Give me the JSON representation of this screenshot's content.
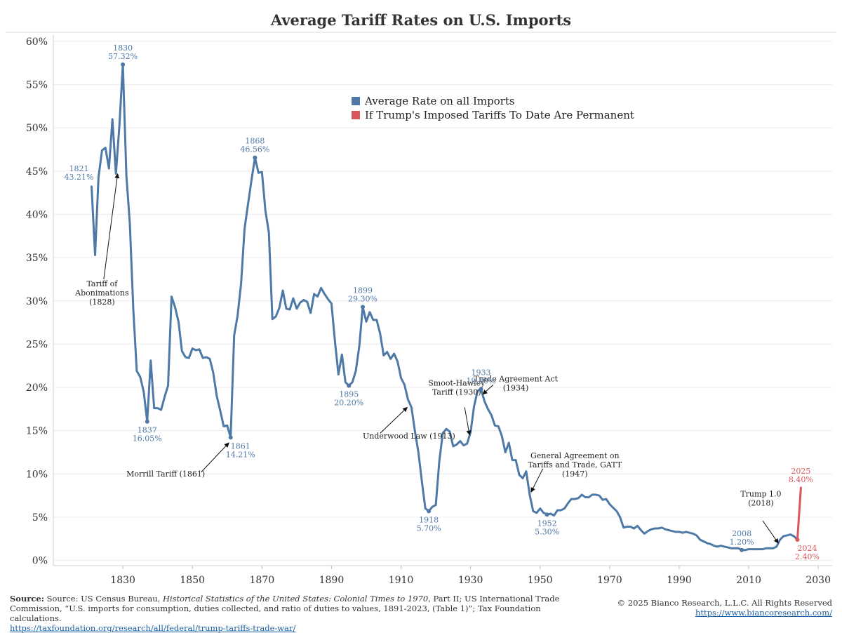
{
  "chart_data": {
    "type": "line",
    "title": "Average Tariff Rates on U.S. Imports",
    "xlabel": "",
    "ylabel": "",
    "xlim": [
      1810,
      2034
    ],
    "ylim": [
      -0.6,
      60.4
    ],
    "grid": true,
    "x_ticks": [
      1830,
      1850,
      1870,
      1890,
      1910,
      1930,
      1950,
      1970,
      1990,
      2010,
      2030
    ],
    "y_ticks": [
      {
        "value": 0,
        "label": "0%"
      },
      {
        "value": 5,
        "label": "5%"
      },
      {
        "value": 10,
        "label": "10%"
      },
      {
        "value": 15,
        "label": "15%"
      },
      {
        "value": 20,
        "label": "20%"
      },
      {
        "value": 25,
        "label": "25%"
      },
      {
        "value": 30,
        "label": "30%"
      },
      {
        "value": 35,
        "label": "35%"
      },
      {
        "value": 40,
        "label": "40%"
      },
      {
        "value": 45,
        "label": "45%"
      },
      {
        "value": 50,
        "label": "50%"
      },
      {
        "value": 55,
        "label": "55%"
      },
      {
        "value": 60,
        "label": "60%"
      }
    ],
    "legend": {
      "placement": "top-center",
      "entries": [
        {
          "label": "Average Rate on all Imports",
          "color": "#4e79a7"
        },
        {
          "label": "If Trump's Imposed Tariffs To Date Are Permanent",
          "color": "#d9575b"
        }
      ]
    },
    "series": [
      {
        "name": "Average Rate on all Imports",
        "color": "#4e79a7",
        "points": [
          [
            1821,
            43.21
          ],
          [
            1822,
            35.3
          ],
          [
            1823,
            44.3
          ],
          [
            1824,
            47.4
          ],
          [
            1825,
            47.7
          ],
          [
            1826,
            45.3
          ],
          [
            1827,
            51.0
          ],
          [
            1828,
            44.7
          ],
          [
            1829,
            50.3
          ],
          [
            1830,
            57.32
          ],
          [
            1831,
            44.5
          ],
          [
            1832,
            39.0
          ],
          [
            1833,
            29.0
          ],
          [
            1834,
            21.9
          ],
          [
            1835,
            21.2
          ],
          [
            1836,
            19.5
          ],
          [
            1837,
            16.05
          ],
          [
            1838,
            23.1
          ],
          [
            1839,
            17.6
          ],
          [
            1840,
            17.6
          ],
          [
            1841,
            17.4
          ],
          [
            1842,
            18.9
          ],
          [
            1843,
            20.2
          ],
          [
            1844,
            30.5
          ],
          [
            1845,
            29.3
          ],
          [
            1846,
            27.6
          ],
          [
            1847,
            24.2
          ],
          [
            1848,
            23.5
          ],
          [
            1849,
            23.4
          ],
          [
            1850,
            24.5
          ],
          [
            1851,
            24.3
          ],
          [
            1852,
            24.4
          ],
          [
            1853,
            23.4
          ],
          [
            1854,
            23.5
          ],
          [
            1855,
            23.3
          ],
          [
            1856,
            21.7
          ],
          [
            1857,
            19.0
          ],
          [
            1858,
            17.3
          ],
          [
            1859,
            15.5
          ],
          [
            1860,
            15.6
          ],
          [
            1861,
            14.21
          ],
          [
            1862,
            26.0
          ],
          [
            1863,
            28.3
          ],
          [
            1864,
            32.0
          ],
          [
            1865,
            38.3
          ],
          [
            1866,
            41.2
          ],
          [
            1867,
            44.0
          ],
          [
            1868,
            46.56
          ],
          [
            1869,
            44.8
          ],
          [
            1870,
            44.9
          ],
          [
            1871,
            40.4
          ],
          [
            1872,
            37.9
          ],
          [
            1873,
            27.9
          ],
          [
            1874,
            28.2
          ],
          [
            1875,
            29.2
          ],
          [
            1876,
            31.2
          ],
          [
            1877,
            29.1
          ],
          [
            1878,
            29.0
          ],
          [
            1879,
            30.3
          ],
          [
            1880,
            29.1
          ],
          [
            1881,
            29.8
          ],
          [
            1882,
            30.1
          ],
          [
            1883,
            29.9
          ],
          [
            1884,
            28.6
          ],
          [
            1885,
            30.8
          ],
          [
            1886,
            30.5
          ],
          [
            1887,
            31.5
          ],
          [
            1888,
            30.8
          ],
          [
            1889,
            30.2
          ],
          [
            1890,
            29.7
          ],
          [
            1891,
            25.3
          ],
          [
            1892,
            21.5
          ],
          [
            1893,
            23.8
          ],
          [
            1894,
            20.6
          ],
          [
            1895,
            20.2
          ],
          [
            1896,
            20.6
          ],
          [
            1897,
            21.9
          ],
          [
            1898,
            24.8
          ],
          [
            1899,
            29.3
          ],
          [
            1900,
            27.6
          ],
          [
            1901,
            28.7
          ],
          [
            1902,
            27.8
          ],
          [
            1903,
            27.8
          ],
          [
            1904,
            26.2
          ],
          [
            1905,
            23.7
          ],
          [
            1906,
            24.1
          ],
          [
            1907,
            23.3
          ],
          [
            1908,
            23.9
          ],
          [
            1909,
            23.0
          ],
          [
            1910,
            21.1
          ],
          [
            1911,
            20.3
          ],
          [
            1912,
            18.6
          ],
          [
            1913,
            17.7
          ],
          [
            1914,
            14.9
          ],
          [
            1915,
            12.5
          ],
          [
            1916,
            9.1
          ],
          [
            1917,
            6.0
          ],
          [
            1918,
            5.7
          ],
          [
            1919,
            6.2
          ],
          [
            1920,
            6.4
          ],
          [
            1921,
            11.4
          ],
          [
            1922,
            14.7
          ],
          [
            1923,
            15.2
          ],
          [
            1924,
            14.9
          ],
          [
            1925,
            13.2
          ],
          [
            1926,
            13.4
          ],
          [
            1927,
            13.8
          ],
          [
            1928,
            13.3
          ],
          [
            1929,
            13.5
          ],
          [
            1930,
            14.8
          ],
          [
            1931,
            17.8
          ],
          [
            1932,
            19.6
          ],
          [
            1933,
            19.8
          ],
          [
            1934,
            18.4
          ],
          [
            1935,
            17.5
          ],
          [
            1936,
            16.8
          ],
          [
            1937,
            15.6
          ],
          [
            1938,
            15.5
          ],
          [
            1939,
            14.4
          ],
          [
            1940,
            12.5
          ],
          [
            1941,
            13.6
          ],
          [
            1942,
            11.6
          ],
          [
            1943,
            11.6
          ],
          [
            1944,
            9.9
          ],
          [
            1945,
            9.5
          ],
          [
            1946,
            10.3
          ],
          [
            1947,
            7.6
          ],
          [
            1948,
            5.7
          ],
          [
            1949,
            5.5
          ],
          [
            1950,
            6.0
          ],
          [
            1951,
            5.5
          ],
          [
            1952,
            5.3
          ],
          [
            1953,
            5.4
          ],
          [
            1954,
            5.2
          ],
          [
            1955,
            5.8
          ],
          [
            1956,
            5.8
          ],
          [
            1957,
            6.0
          ],
          [
            1958,
            6.6
          ],
          [
            1959,
            7.1
          ],
          [
            1960,
            7.1
          ],
          [
            1961,
            7.2
          ],
          [
            1962,
            7.6
          ],
          [
            1963,
            7.3
          ],
          [
            1964,
            7.3
          ],
          [
            1965,
            7.6
          ],
          [
            1966,
            7.6
          ],
          [
            1967,
            7.5
          ],
          [
            1968,
            7.0
          ],
          [
            1969,
            7.1
          ],
          [
            1970,
            6.5
          ],
          [
            1971,
            6.1
          ],
          [
            1972,
            5.7
          ],
          [
            1973,
            5.0
          ],
          [
            1974,
            3.8
          ],
          [
            1975,
            3.9
          ],
          [
            1976,
            3.9
          ],
          [
            1977,
            3.7
          ],
          [
            1978,
            4.0
          ],
          [
            1979,
            3.5
          ],
          [
            1980,
            3.1
          ],
          [
            1981,
            3.4
          ],
          [
            1982,
            3.6
          ],
          [
            1983,
            3.7
          ],
          [
            1984,
            3.7
          ],
          [
            1985,
            3.8
          ],
          [
            1986,
            3.6
          ],
          [
            1987,
            3.5
          ],
          [
            1988,
            3.4
          ],
          [
            1989,
            3.3
          ],
          [
            1990,
            3.3
          ],
          [
            1991,
            3.2
          ],
          [
            1992,
            3.3
          ],
          [
            1993,
            3.2
          ],
          [
            1994,
            3.1
          ],
          [
            1995,
            2.9
          ],
          [
            1996,
            2.4
          ],
          [
            1997,
            2.2
          ],
          [
            1998,
            2.0
          ],
          [
            1999,
            1.9
          ],
          [
            2000,
            1.7
          ],
          [
            2001,
            1.6
          ],
          [
            2002,
            1.7
          ],
          [
            2003,
            1.6
          ],
          [
            2004,
            1.5
          ],
          [
            2005,
            1.4
          ],
          [
            2006,
            1.4
          ],
          [
            2007,
            1.4
          ],
          [
            2008,
            1.2
          ],
          [
            2009,
            1.2
          ],
          [
            2010,
            1.3
          ],
          [
            2011,
            1.3
          ],
          [
            2012,
            1.3
          ],
          [
            2013,
            1.3
          ],
          [
            2014,
            1.3
          ],
          [
            2015,
            1.4
          ],
          [
            2016,
            1.4
          ],
          [
            2017,
            1.4
          ],
          [
            2018,
            1.6
          ],
          [
            2019,
            2.4
          ],
          [
            2020,
            2.8
          ],
          [
            2021,
            2.9
          ],
          [
            2022,
            3.0
          ],
          [
            2023,
            2.8
          ],
          [
            2024,
            2.4
          ]
        ]
      },
      {
        "name": "If Trump's Imposed Tariffs To Date Are Permanent",
        "color": "#d9575b",
        "points": [
          [
            2024,
            2.4
          ],
          [
            2025,
            8.4
          ]
        ]
      }
    ],
    "point_labels": [
      {
        "x": 1821,
        "y": 43.21,
        "line1": "1821",
        "line2": "43.21%",
        "dot": false,
        "color": "blue",
        "pos": "above-left"
      },
      {
        "x": 1830,
        "y": 57.32,
        "line1": "1830",
        "line2": "57.32%",
        "dot": true,
        "color": "blue",
        "pos": "above"
      },
      {
        "x": 1837,
        "y": 16.05,
        "line1": "1837",
        "line2": "16.05%",
        "dot": true,
        "color": "blue",
        "pos": "below"
      },
      {
        "x": 1861,
        "y": 14.21,
        "line1": "1861",
        "line2": "14.21%",
        "dot": true,
        "color": "blue",
        "pos": "below-right"
      },
      {
        "x": 1868,
        "y": 46.56,
        "line1": "1868",
        "line2": "46.56%",
        "dot": true,
        "color": "blue",
        "pos": "above"
      },
      {
        "x": 1895,
        "y": 20.2,
        "line1": "1895",
        "line2": "20.20%",
        "dot": true,
        "color": "blue",
        "pos": "below"
      },
      {
        "x": 1899,
        "y": 29.3,
        "line1": "1899",
        "line2": "29.30%",
        "dot": true,
        "color": "blue",
        "pos": "above"
      },
      {
        "x": 1918,
        "y": 5.7,
        "line1": "1918",
        "line2": "5.70%",
        "dot": true,
        "color": "blue",
        "pos": "below"
      },
      {
        "x": 1933,
        "y": 19.8,
        "line1": "1933",
        "line2": "19.80%",
        "dot": true,
        "color": "blue",
        "pos": "above"
      },
      {
        "x": 1952,
        "y": 5.3,
        "line1": "1952",
        "line2": "5.30%",
        "dot": true,
        "color": "blue",
        "pos": "below"
      },
      {
        "x": 2008,
        "y": 1.2,
        "line1": "2008",
        "line2": "1.20%",
        "dot": true,
        "color": "blue",
        "pos": "above"
      },
      {
        "x": 2024,
        "y": 2.4,
        "line1": "2024",
        "line2": "2.40%",
        "dot": true,
        "color": "red",
        "pos": "below-right"
      },
      {
        "x": 2025,
        "y": 8.4,
        "line1": "2025",
        "line2": "8.40%",
        "dot": false,
        "color": "red",
        "pos": "above"
      }
    ],
    "annotations": [
      {
        "lines": [
          "Tariff of",
          "Abonimations",
          "(1828)"
        ],
        "text_x": 1824,
        "text_y": 31.7,
        "arrow_from": [
          1824.5,
          32.5
        ],
        "arrow_to": [
          1828.5,
          44.7
        ],
        "anchor": "middle"
      },
      {
        "lines": [
          "Morrill Tariff (1861)"
        ],
        "text_x": 1831,
        "text_y": 9.7,
        "arrow_from": [
          1852.5,
          10.2
        ],
        "arrow_to": [
          1860.5,
          13.6
        ],
        "anchor": "start"
      },
      {
        "lines": [
          "Underwood Law (1913)"
        ],
        "text_x": 1899,
        "text_y": 14.1,
        "arrow_from": [
          1904,
          14.7
        ],
        "arrow_to": [
          1911.8,
          17.7
        ],
        "anchor": "start"
      },
      {
        "lines": [
          "Smoot-Hawley",
          "Tariff (1930)"
        ],
        "text_x": 1926,
        "text_y": 20.2,
        "arrow_from": [
          1928.3,
          17.7
        ],
        "arrow_to": [
          1929.7,
          14.5
        ],
        "anchor": "middle"
      },
      {
        "lines": [
          "Trade Agreement Act",
          "(1934)"
        ],
        "text_x": 1943,
        "text_y": 20.7,
        "arrow_from": [
          1936.5,
          20.3
        ],
        "arrow_to": [
          1933.5,
          19.2
        ],
        "anchor": "middle"
      },
      {
        "lines": [
          "General Agreement on",
          "Tariffs and Trade, GATT",
          "(1947)"
        ],
        "text_x": 1960,
        "text_y": 11.8,
        "arrow_from": [
          1950.8,
          10.6
        ],
        "arrow_to": [
          1947.4,
          7.9
        ],
        "anchor": "middle"
      },
      {
        "lines": [
          "Trump 1.0",
          "(2018)"
        ],
        "text_x": 2013.5,
        "text_y": 7.4,
        "arrow_from": [
          2014,
          4.6
        ],
        "arrow_to": [
          2018.5,
          2.0
        ],
        "anchor": "middle"
      }
    ]
  },
  "footer": {
    "source_label": "Source:",
    "source_text_1": " Source: US Census Bureau, ",
    "source_italic": "Historical Statistics of the United States: Colonial Times to 1970",
    "source_text_2": ", Part II; US International Trade Commission, “U.S. imports for consumption, duties collected, and ratio of duties to values, 1891-2023, (Table 1)”; Tax Foundation calculations.",
    "source_link": "https://taxfoundation.org/research/all/federal/trump-tariffs-trade-war/",
    "copyright": "© 2025 Bianco Research, L.L.C. All Rights Reserved",
    "site_link": "https://www.biancoresearch.com/"
  }
}
